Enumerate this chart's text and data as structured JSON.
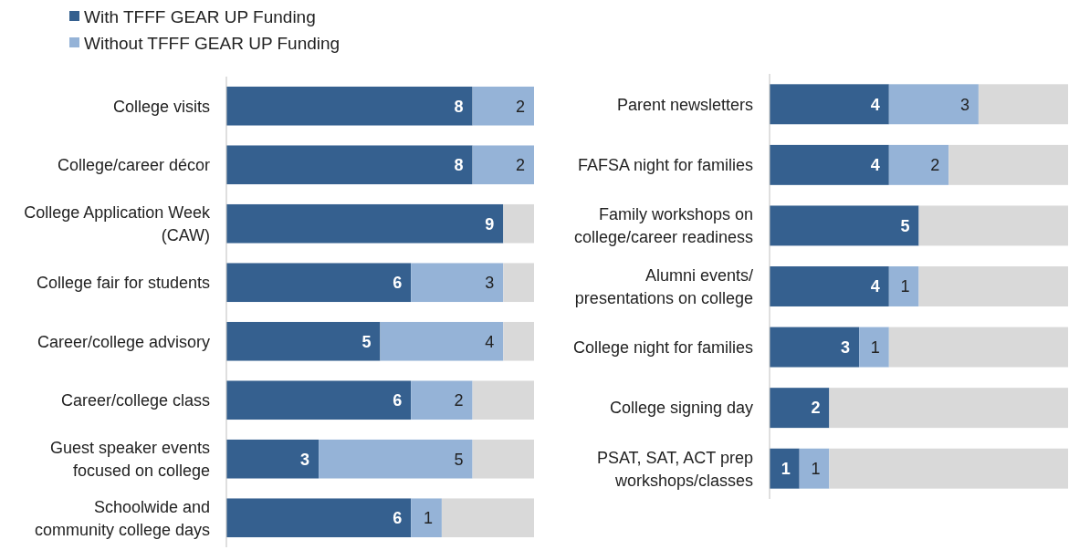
{
  "chart_data": [
    {
      "type": "bar",
      "orientation": "horizontal",
      "stacked": true,
      "legend": "top left",
      "tick_labels": "y",
      "xlim": [
        0,
        10
      ],
      "categories": [
        "College visits",
        "College/career décor",
        "College Application Week\n(CAW)",
        "College fair for students",
        "Career/college advisory",
        "Career/college class",
        "Guest speaker events\nfocused on college",
        "Schoolwide and\ncommunity college days"
      ],
      "series": [
        {
          "name": "With TFFF GEAR UP Funding",
          "color": "#35608f",
          "values": [
            8,
            8,
            9,
            6,
            5,
            6,
            3,
            6
          ],
          "value_labels": [
            "8",
            "8",
            "9",
            "6",
            "5",
            "6",
            "3",
            "6"
          ]
        },
        {
          "name": "Without TFFF GEAR UP Funding",
          "color": "#95b3d7",
          "values": [
            2,
            2,
            0,
            3,
            4,
            2,
            5,
            1
          ],
          "value_labels": [
            "2",
            "2",
            null,
            "3",
            "4",
            "2",
            "5",
            "1"
          ]
        },
        {
          "color": "#d9d9d9",
          "values": [
            0,
            0,
            1,
            1,
            1,
            2,
            2,
            3
          ]
        }
      ]
    },
    {
      "type": "bar",
      "orientation": "horizontal",
      "stacked": true,
      "tick_labels": "y",
      "xlim": [
        0,
        10
      ],
      "categories": [
        "Parent newsletters",
        "FAFSA night for families",
        "Family workshops on\ncollege/career readiness",
        "Alumni events/\npresentations on college",
        "College night for families",
        "College signing day",
        "PSAT, SAT, ACT prep\nworkshops/classes"
      ],
      "series": [
        {
          "color": "#35608f",
          "values": [
            4,
            4,
            5,
            4,
            3,
            2,
            1
          ],
          "value_labels": [
            "4",
            "4",
            "5",
            "4",
            "3",
            "2",
            "1"
          ]
        },
        {
          "color": "#95b3d7",
          "values": [
            3,
            2,
            0,
            1,
            1,
            0,
            1
          ],
          "value_labels": [
            "3",
            "2",
            null,
            "1",
            "1",
            null,
            "1"
          ]
        },
        {
          "color": "#d9d9d9",
          "values": [
            3,
            4,
            5,
            5,
            6,
            8,
            8
          ]
        }
      ]
    }
  ]
}
